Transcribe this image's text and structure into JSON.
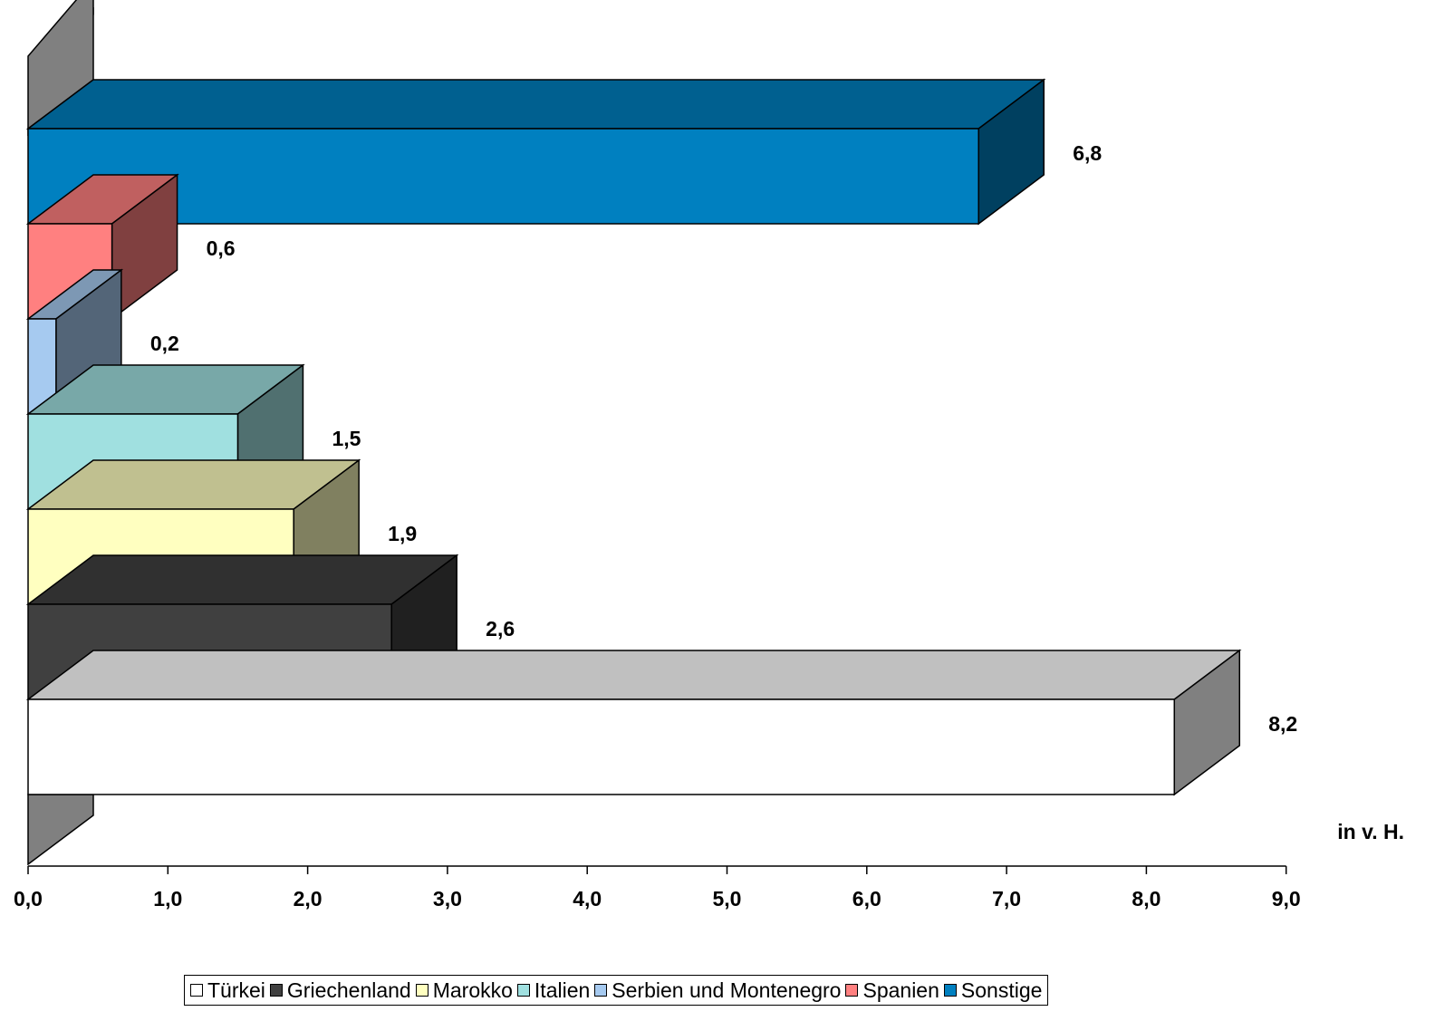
{
  "chart_data": {
    "type": "bar",
    "orientation": "horizontal",
    "style": "3d",
    "series": [
      {
        "name": "Türkei",
        "value": 8.2,
        "label": "8,2",
        "color": "#ffffff",
        "top_color": "#c0c0c0",
        "side_color": "#808080"
      },
      {
        "name": "Griechenland",
        "value": 2.6,
        "label": "2,6",
        "color": "#404040",
        "top_color": "#303030",
        "side_color": "#202020"
      },
      {
        "name": "Marokko",
        "value": 1.9,
        "label": "1,9",
        "color": "#ffffc0",
        "top_color": "#c0c090",
        "side_color": "#808060"
      },
      {
        "name": "Italien",
        "value": 1.5,
        "label": "1,5",
        "color": "#a0e0e0",
        "top_color": "#78a8a8",
        "side_color": "#507070"
      },
      {
        "name": "Serbien und Montenegro",
        "value": 0.2,
        "label": "0,2",
        "color": "#a6caf0",
        "top_color": "#7d98b4",
        "side_color": "#536578"
      },
      {
        "name": "Spanien",
        "value": 0.6,
        "label": "0,6",
        "color": "#ff8080",
        "top_color": "#c06060",
        "side_color": "#804040"
      },
      {
        "name": "Sonstige",
        "value": 6.8,
        "label": "6,8",
        "color": "#0080c0",
        "top_color": "#006090",
        "side_color": "#004060"
      }
    ],
    "x_ticks": [
      "0,0",
      "1,0",
      "2,0",
      "3,0",
      "4,0",
      "5,0",
      "6,0",
      "7,0",
      "8,0",
      "9,0"
    ],
    "xlim": [
      0,
      9
    ],
    "xlabel": "in v. H.",
    "grid": false,
    "legend_position": "bottom"
  },
  "colors": {
    "wall": "#808080",
    "axis": "#000000",
    "text": "#000000"
  }
}
